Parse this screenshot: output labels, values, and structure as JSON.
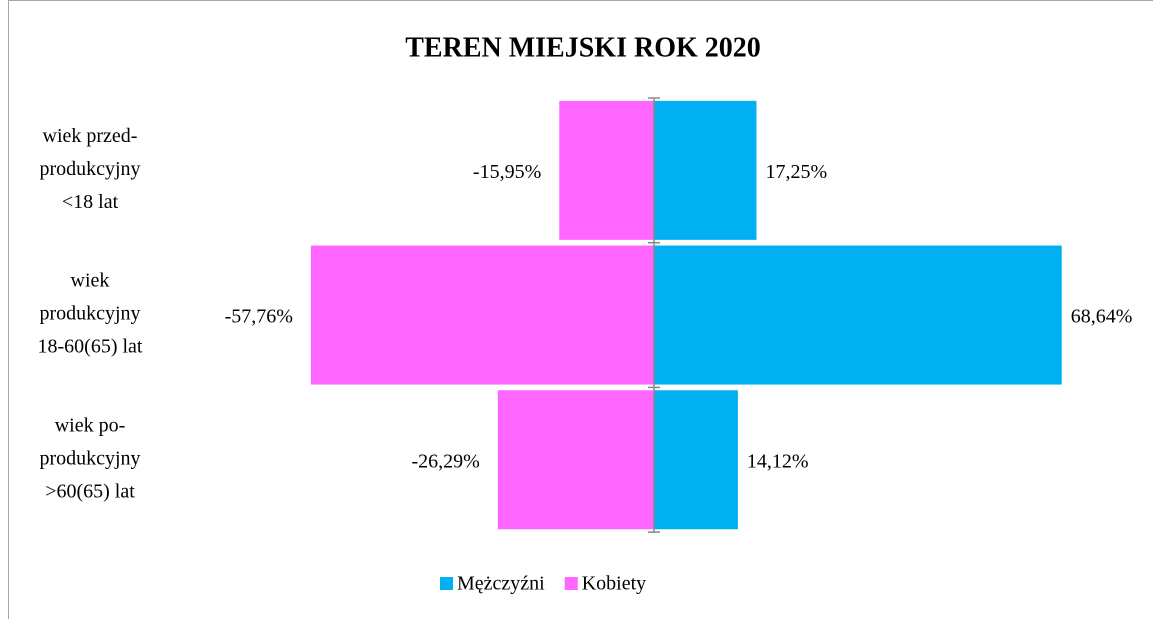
{
  "chart_data": {
    "type": "diverging-bar",
    "title": "TEREN MIEJSKI ROK 2020",
    "categories": [
      [
        "wiek przed-",
        "produkcyjny",
        "<18 lat"
      ],
      [
        "wiek",
        "produkcyjny",
        "18-60(65) lat"
      ],
      [
        "wiek po-",
        "produkcyjny",
        ">60(65) lat"
      ]
    ],
    "series": [
      {
        "name": "Mężczyźni",
        "color": "#00b0f0",
        "values": [
          17.25,
          68.64,
          14.12
        ],
        "value_labels": [
          "17,25%",
          "68,64%",
          "14,12%"
        ]
      },
      {
        "name": "Kobiety",
        "color": "#ff66ff",
        "values": [
          -15.95,
          -57.76,
          -26.29
        ],
        "value_labels": [
          "-15,95%",
          "-57,76%",
          "-26,29%"
        ]
      }
    ],
    "legend": "bottom"
  }
}
